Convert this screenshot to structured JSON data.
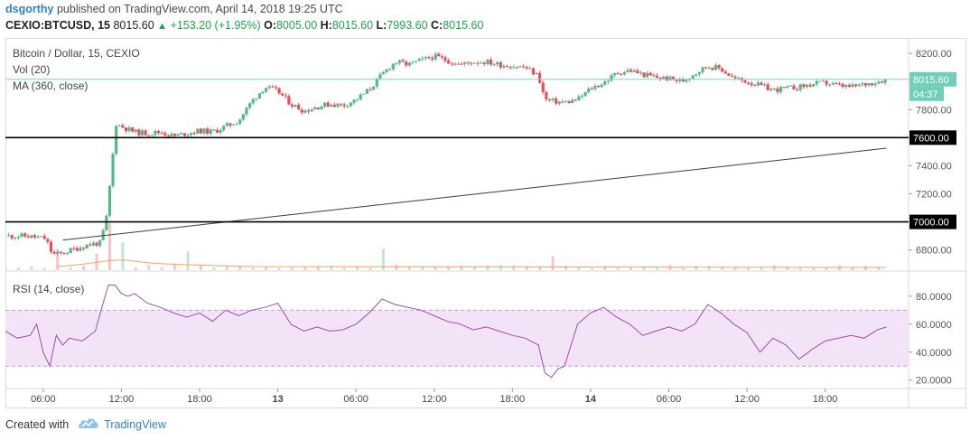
{
  "header": {
    "author": "dsgorthy",
    "published_text": "published on TradingView.com, April 14, 2018 19:25 UTC",
    "symbol": "CEXIO:BTCUSD, 15",
    "last": "8015.60",
    "change": "+153.20 (+1.95%)",
    "open_label": "O:",
    "open": "8005.00",
    "high_label": "H:",
    "high": "8015.60",
    "low_label": "L:",
    "low": "7993.60",
    "close_label": "C:",
    "close": "8015.60"
  },
  "legend": {
    "title": "Bitcoin / Dollar, 15, CEXIO",
    "vol": "Vol (20)",
    "ma": "MA (360, close)",
    "rsi": "RSI (14, close)"
  },
  "footer": {
    "created_with": "Created with",
    "brand": "TradingView"
  },
  "colors": {
    "up": "#53b987",
    "down": "#eb4d5c",
    "rsi_line": "#9c4ea8",
    "rsi_band": "#f3e3f7",
    "hline": "#000000",
    "ma_line": "#3c3c3c"
  },
  "chart_data": [
    {
      "type": "candlestick",
      "title": "Bitcoin / Dollar, 15, CEXIO",
      "ylim": [
        6650,
        8310
      ],
      "y_ticks": [
        "8200.00",
        "7800.00",
        "7400.00",
        "7200.00",
        "6800.00"
      ],
      "price_badges": [
        {
          "label": "8015.60",
          "sub": "04:37",
          "value": 8015.6,
          "kind": "last"
        },
        {
          "label": "7600.00",
          "value": 7600,
          "kind": "level"
        },
        {
          "label": "7000.00",
          "value": 7000,
          "kind": "level"
        }
      ],
      "x_ticks": [
        {
          "label": "06:00",
          "t": 6
        },
        {
          "label": "12:00",
          "t": 12
        },
        {
          "label": "18:00",
          "t": 18
        },
        {
          "label": "13",
          "t": 24,
          "bold": true
        },
        {
          "label": "06:00",
          "t": 30
        },
        {
          "label": "12:00",
          "t": 36
        },
        {
          "label": "18:00",
          "t": 42
        },
        {
          "label": "14",
          "t": 48,
          "bold": true
        },
        {
          "label": "06:00",
          "t": 54
        },
        {
          "label": "12:00",
          "t": 60
        },
        {
          "label": "18:00",
          "t": 66
        }
      ],
      "xlim": [
        3.1,
        72.4
      ],
      "close_series": [
        [
          3.1,
          6900
        ],
        [
          4.5,
          6900
        ],
        [
          5.5,
          6890
        ],
        [
          6.2,
          6880
        ],
        [
          6.7,
          6770
        ],
        [
          7.2,
          6770
        ],
        [
          8.5,
          6810
        ],
        [
          9.5,
          6840
        ],
        [
          10.4,
          6850
        ],
        [
          10.9,
          7050
        ],
        [
          11.2,
          7350
        ],
        [
          11.6,
          7700
        ],
        [
          12,
          7680
        ],
        [
          13,
          7640
        ],
        [
          14,
          7630
        ],
        [
          15,
          7640
        ],
        [
          16,
          7610
        ],
        [
          17,
          7630
        ],
        [
          18,
          7650
        ],
        [
          19,
          7640
        ],
        [
          20,
          7680
        ],
        [
          21,
          7720
        ],
        [
          22,
          7860
        ],
        [
          23,
          7960
        ],
        [
          24,
          7930
        ],
        [
          25,
          7840
        ],
        [
          26,
          7790
        ],
        [
          27,
          7820
        ],
        [
          28,
          7840
        ],
        [
          29,
          7830
        ],
        [
          30,
          7870
        ],
        [
          31,
          7940
        ],
        [
          32,
          8050
        ],
        [
          33,
          8140
        ],
        [
          34,
          8120
        ],
        [
          35,
          8150
        ],
        [
          36,
          8180
        ],
        [
          37,
          8150
        ],
        [
          38,
          8120
        ],
        [
          39,
          8140
        ],
        [
          40,
          8140
        ],
        [
          41,
          8120
        ],
        [
          42,
          8110
        ],
        [
          43,
          8100
        ],
        [
          44,
          8040
        ],
        [
          44.5,
          7870
        ],
        [
          45,
          7860
        ],
        [
          46,
          7850
        ],
        [
          47,
          7870
        ],
        [
          48,
          7950
        ],
        [
          49,
          7990
        ],
        [
          50,
          8060
        ],
        [
          51,
          8080
        ],
        [
          52,
          8050
        ],
        [
          53,
          8030
        ],
        [
          54,
          8020
        ],
        [
          55,
          8000
        ],
        [
          56,
          8060
        ],
        [
          57,
          8110
        ],
        [
          58,
          8090
        ],
        [
          59,
          8020
        ],
        [
          60,
          8000
        ],
        [
          61,
          7970
        ],
        [
          62,
          7940
        ],
        [
          63,
          7950
        ],
        [
          64,
          7960
        ],
        [
          65,
          7980
        ],
        [
          66,
          7990
        ],
        [
          67,
          7970
        ],
        [
          68,
          7960
        ],
        [
          69,
          7980
        ],
        [
          70,
          8000
        ],
        [
          70.7,
          8015.6
        ]
      ],
      "horizontal_levels": [
        7600,
        7000
      ],
      "ma_line": [
        [
          7.5,
          6870
        ],
        [
          70.7,
          7525
        ]
      ]
    },
    {
      "type": "bar",
      "title": "Vol (20)",
      "spikes": [
        [
          7.0,
          0.45
        ],
        [
          10.5,
          0.35
        ],
        [
          11.0,
          0.9
        ],
        [
          11.5,
          1.0
        ],
        [
          12.0,
          0.6
        ],
        [
          17.5,
          0.4
        ],
        [
          32.5,
          0.45
        ],
        [
          45.0,
          0.3
        ]
      ]
    },
    {
      "type": "line",
      "title": "RSI (14, close)",
      "ylim": [
        14,
        98
      ],
      "y_ticks": [
        "80.0000",
        "60.0000",
        "40.0000",
        "20.0000"
      ],
      "band": [
        30,
        70
      ],
      "x": [
        3.1,
        4,
        5,
        5.5,
        6,
        6.5,
        7,
        7.5,
        8,
        9,
        10,
        10.5,
        11,
        11.5,
        12,
        12.5,
        13,
        14,
        15,
        16,
        17,
        18,
        19,
        20,
        21,
        22,
        23,
        24,
        25,
        26,
        27,
        28,
        29,
        30,
        31,
        32,
        33,
        34,
        35,
        36,
        37,
        38,
        39,
        40,
        41,
        42,
        43,
        44,
        44.5,
        45,
        45.5,
        46,
        47,
        48,
        49,
        50,
        51,
        52,
        53,
        54,
        55,
        56,
        57,
        58,
        59,
        60,
        61,
        62,
        63,
        64,
        65,
        66,
        67,
        68,
        69,
        70,
        70.7
      ],
      "y": [
        55,
        50,
        52,
        60,
        40,
        30,
        52,
        45,
        50,
        48,
        55,
        72,
        88,
        88,
        82,
        80,
        82,
        75,
        72,
        68,
        65,
        68,
        62,
        70,
        66,
        70,
        72,
        75,
        60,
        55,
        58,
        55,
        56,
        60,
        68,
        78,
        74,
        72,
        70,
        66,
        62,
        60,
        56,
        58,
        55,
        52,
        50,
        45,
        25,
        22,
        28,
        30,
        60,
        68,
        72,
        65,
        60,
        52,
        55,
        58,
        55,
        60,
        74,
        68,
        60,
        54,
        40,
        50,
        45,
        35,
        42,
        48,
        50,
        52,
        50,
        56,
        58
      ]
    }
  ]
}
